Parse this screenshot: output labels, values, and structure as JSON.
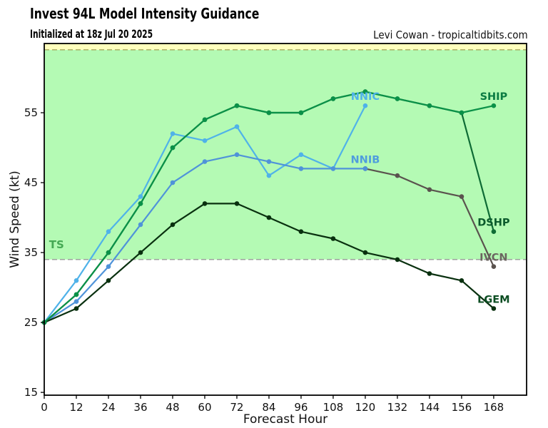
{
  "header": {
    "title": "Invest 94L Model Intensity Guidance",
    "subtitle": "Initialized at 18z Jul 20 2025",
    "credit": "Levi Cowan - tropicaltidbits.com"
  },
  "chart_data": {
    "type": "line",
    "title": "Invest 94L Model Intensity Guidance",
    "xlabel": "Forecast Hour",
    "ylabel": "Wind Speed (kt)",
    "x_ticks": [
      0,
      12,
      24,
      36,
      48,
      60,
      72,
      84,
      96,
      108,
      120,
      132,
      144,
      156,
      168
    ],
    "y_ticks": [
      15,
      25,
      35,
      45,
      55
    ],
    "xlim": [
      0,
      180.3
    ],
    "ylim": [
      14.6,
      64.9
    ],
    "grid": false,
    "legend_position": "inline-end-labels",
    "background_zones": [
      {
        "name": "tropical-storm-zone",
        "from_kt": 34,
        "to_kt": 64,
        "color": "#b4fab4"
      },
      {
        "name": "hurricane-zone",
        "from_kt": 64,
        "to_kt": 64.9,
        "color": "#ffffbd"
      },
      {
        "name": "below-ts-zone",
        "from_kt": 14.6,
        "to_kt": 34,
        "color": "#ffffff"
      }
    ],
    "threshold_lines": [
      {
        "value_kt": 64,
        "style": "dashed",
        "color": "#a8a85c"
      },
      {
        "value_kt": 34,
        "style": "dashed",
        "color": "#999999"
      }
    ],
    "zone_label": {
      "text": "TS",
      "color": "#45a954",
      "x_hour": 1.8,
      "y_kt": 35.6
    },
    "series": [
      {
        "name": "NNIC",
        "color": "#4fb2e9",
        "label_color": "#4fb2e9",
        "hours": [
          0,
          12,
          24,
          36,
          48,
          60,
          72,
          84,
          96,
          108,
          120
        ],
        "values": [
          25,
          31,
          38,
          43,
          52,
          51,
          53,
          46,
          49,
          47,
          56
        ]
      },
      {
        "name": "IVCN",
        "color": "#5a524e",
        "label_color": "#6b6560",
        "hours": [
          120,
          132,
          144,
          156,
          168
        ],
        "values": [
          47,
          46,
          44,
          43,
          33
        ]
      },
      {
        "name": "NNIB",
        "color": "#4f93d9",
        "label_color": "#4f9ddd",
        "hours": [
          0,
          12,
          24,
          36,
          48,
          60,
          72,
          84,
          96,
          108,
          120
        ],
        "values": [
          25,
          28,
          33,
          39,
          45,
          48,
          49,
          48,
          47,
          47,
          47
        ]
      },
      {
        "name": "DSHP",
        "color": "#0e6b35",
        "label_color": "#0b5a2c",
        "hours": [
          0,
          12,
          24,
          36,
          48,
          60,
          72,
          84,
          96,
          108,
          120,
          132,
          144,
          156,
          168
        ],
        "values": [
          25,
          29,
          35,
          42,
          50,
          54,
          56,
          55,
          55,
          57,
          58,
          57,
          56,
          55,
          38
        ]
      },
      {
        "name": "LGEM",
        "color": "#09300f",
        "label_color": "#0b4d22",
        "hours": [
          0,
          12,
          24,
          36,
          48,
          60,
          72,
          84,
          96,
          108,
          120,
          132,
          144,
          156,
          168
        ],
        "values": [
          25,
          27,
          31,
          35,
          39,
          42,
          42,
          40,
          38,
          37,
          35,
          34,
          32,
          31,
          27
        ]
      },
      {
        "name": "SHIP",
        "color": "#0a9148",
        "label_color": "#0a7b42",
        "hours": [
          0,
          12,
          24,
          36,
          48,
          60,
          72,
          84,
          96,
          108,
          120,
          132,
          144,
          156,
          168
        ],
        "values": [
          25,
          29,
          35,
          42,
          50,
          54,
          56,
          55,
          55,
          57,
          58,
          57,
          56,
          55,
          56
        ]
      }
    ]
  }
}
